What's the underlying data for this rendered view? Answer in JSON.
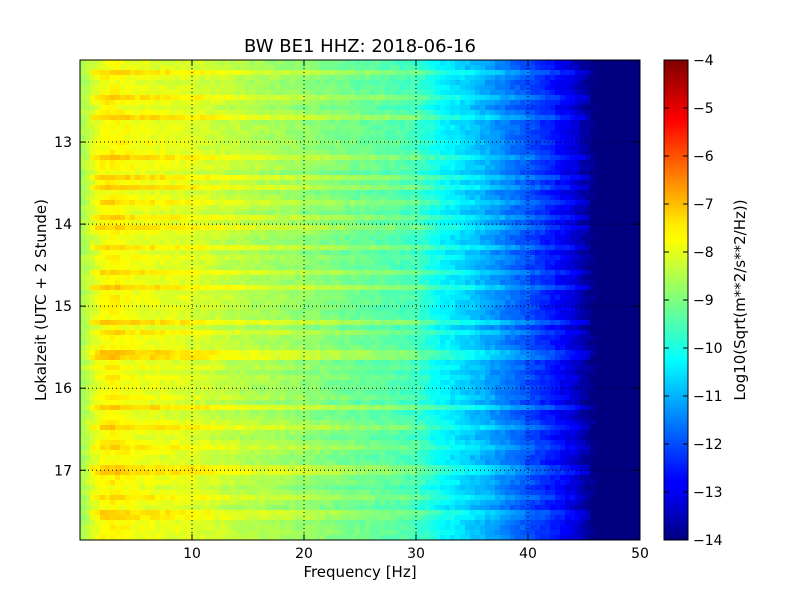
{
  "chart_data": {
    "type": "heatmap",
    "title": "BW BE1 HHZ: 2018-06-16",
    "xlabel": "Frequency [Hz]",
    "ylabel": "Lokalzeit (UTC + 2 Stunde)",
    "colorbar_label": "Log10(Sqrt(m**2/s**2/Hz))",
    "xlim": [
      0,
      50
    ],
    "ylim": [
      17.85,
      12.0
    ],
    "clim": [
      -14,
      -4
    ],
    "x_ticks": [
      10,
      20,
      30,
      40,
      50
    ],
    "x_tick_labels": [
      "10",
      "20",
      "30",
      "40",
      "50"
    ],
    "y_ticks": [
      13,
      14,
      15,
      16,
      17
    ],
    "y_tick_labels": [
      "13",
      "14",
      "15",
      "16",
      "17"
    ],
    "colorbar_ticks": [
      -4,
      -5,
      -6,
      -7,
      -8,
      -9,
      -10,
      -11,
      -12,
      -13,
      -14
    ],
    "colorbar_tick_labels": [
      "−4",
      "−5",
      "−6",
      "−7",
      "−8",
      "−9",
      "−10",
      "−11",
      "−12",
      "−13",
      "−14"
    ],
    "colormap": "jet",
    "grid": true,
    "spectrum_profile": {
      "frequency_hz": [
        0,
        1,
        2,
        3,
        5,
        10,
        15,
        20,
        25,
        28,
        30,
        32,
        34,
        36,
        38,
        40,
        42,
        44,
        45,
        46,
        50
      ],
      "log_psd": [
        -8.7,
        -8.2,
        -7.8,
        -7.7,
        -7.9,
        -8.1,
        -8.5,
        -8.8,
        -9.2,
        -9.4,
        -9.6,
        -10.2,
        -10.6,
        -11.0,
        -11.5,
        -12.0,
        -12.5,
        -13.1,
        -13.6,
        -14.0,
        -14.0
      ]
    },
    "bright_bands_hours": [
      12.15,
      12.45,
      12.7,
      13.2,
      13.45,
      13.55,
      13.75,
      13.9,
      14.05,
      14.3,
      14.6,
      14.75,
      15.2,
      15.3,
      15.6,
      16.25,
      16.5,
      16.7,
      17.0,
      17.35,
      17.55
    ]
  }
}
